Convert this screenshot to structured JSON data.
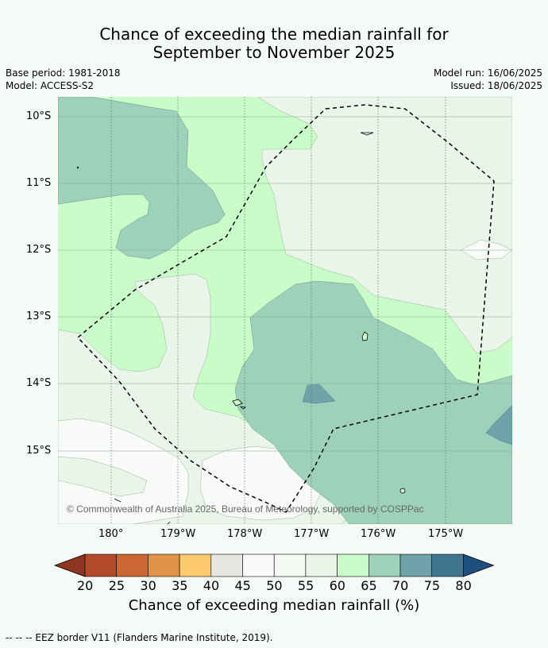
{
  "title_line1": "Chance of exceeding the median rainfall for",
  "title_line2": "September to November 2025",
  "base_period": "Base period: 1981-2018",
  "model": "Model: ACCESS-S2",
  "model_run": "Model run: 16/06/2025",
  "issued": "Issued: 18/06/2025",
  "lat_labels": [
    "10°S",
    "11°S",
    "12°S",
    "13°S",
    "14°S",
    "15°S"
  ],
  "lon_labels": [
    "180°",
    "179°W",
    "178°W",
    "177°W",
    "176°W",
    "175°W"
  ],
  "copyright": "© Commonwealth of Australia 2025, Bureau of Meteorology, supported by COSPPac",
  "colorbar": {
    "ticks": [
      "20",
      "25",
      "30",
      "35",
      "40",
      "45",
      "50",
      "55",
      "60",
      "65",
      "70",
      "75",
      "80"
    ],
    "label": "Chance of exceeding median rainfall (%)",
    "colors": [
      "#8f3522",
      "#b34a2a",
      "#cc6633",
      "#e09448",
      "#fdcb6e",
      "#e8e6e2",
      "#f9fbf9",
      "#f4f9f4",
      "#eaf5ea",
      "#c9fcc9",
      "#9dd1bc",
      "#6ea3a9",
      "#40778f",
      "#1f4f7f"
    ]
  },
  "footnote": "-- -- -- EEZ border V11 (Flanders Marine Institute, 2019).",
  "zones": {
    "base": "#c9fcc9",
    "light_green": "#eaf5ea",
    "white": "#f9fbf9",
    "teal": "#9dd1bc",
    "dark_teal": "#6ea3a9"
  }
}
